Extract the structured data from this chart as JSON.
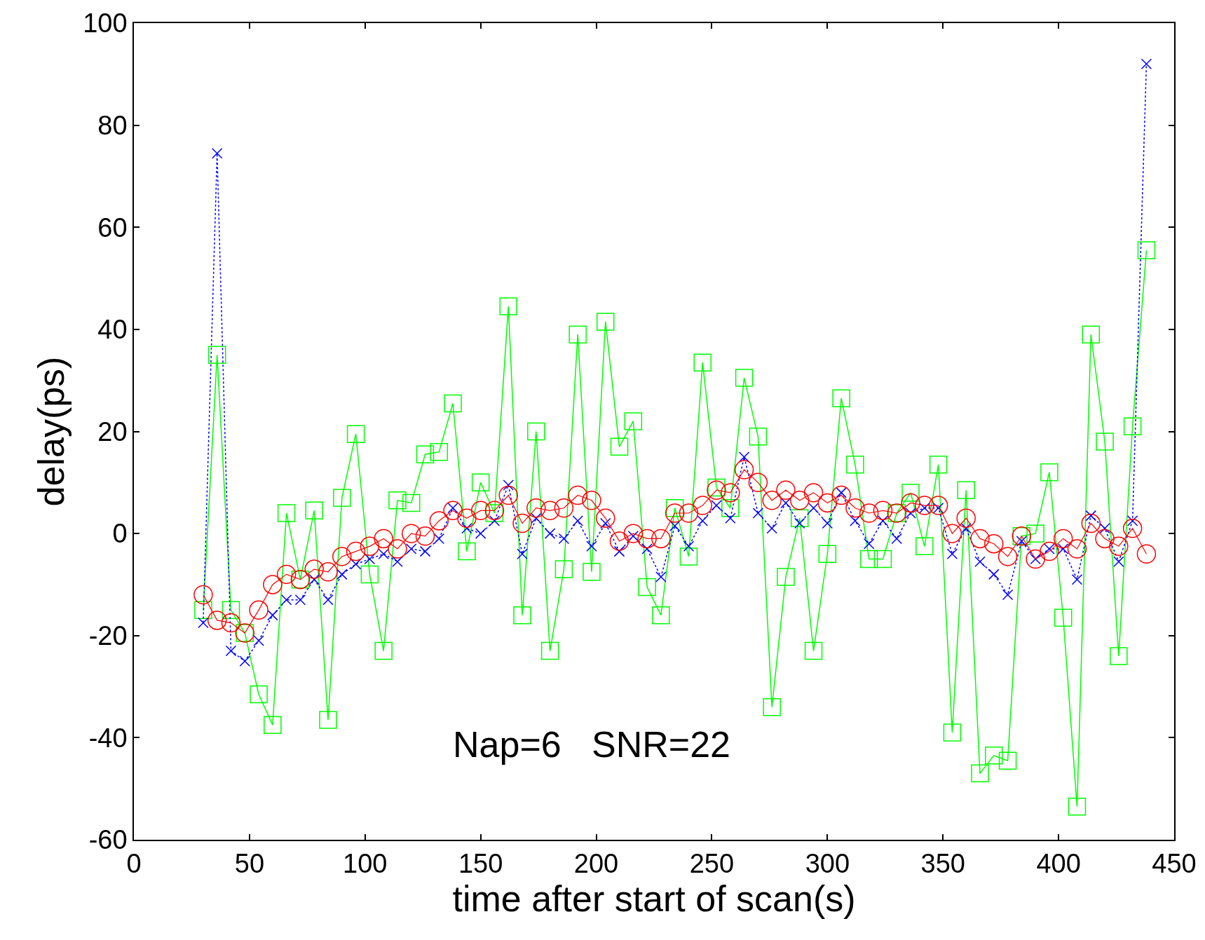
{
  "chart_data": {
    "type": "line",
    "xlabel": "time after start of scan(s)",
    "ylabel": "delay(ps)",
    "annotations": [
      "Nap=6   SNR=22"
    ],
    "x": [
      30,
      36,
      42,
      48,
      54,
      60,
      66,
      72,
      78,
      84,
      90,
      96,
      102,
      108,
      114,
      120,
      126,
      132,
      138,
      144,
      150,
      156,
      162,
      168,
      174,
      180,
      186,
      192,
      198,
      204,
      210,
      216,
      222,
      228,
      234,
      240,
      246,
      252,
      258,
      264,
      270,
      276,
      282,
      288,
      294,
      300,
      306,
      312,
      318,
      324,
      330,
      336,
      342,
      348,
      354,
      360,
      366,
      372,
      378,
      384,
      390,
      396,
      402,
      408,
      414,
      420,
      426,
      432,
      438
    ],
    "series": [
      {
        "color": "#00ff00",
        "marker": "square",
        "line_style": "solid",
        "values": [
          -15,
          35,
          -15,
          -19.5,
          -31.5,
          -37.5,
          4,
          -9,
          4.5,
          -36.5,
          7,
          19.5,
          -8,
          -23,
          6.5,
          6,
          15.5,
          16,
          25.5,
          -3.5,
          10,
          4,
          44.5,
          -16,
          20,
          -23,
          -7,
          39,
          -7.5,
          41.5,
          17,
          22,
          -10.5,
          -16,
          5,
          -4.5,
          33.5,
          9,
          5,
          30.5,
          19,
          -34,
          -8.5,
          3,
          -23,
          -4,
          26.5,
          13.5,
          -5,
          -5,
          4,
          8,
          -2.5,
          13.5,
          -39,
          8.5,
          -47,
          -43.5,
          -44.5,
          -0.5,
          0,
          12,
          -16.5,
          -53.5,
          39,
          18,
          -24,
          21,
          55.5
        ]
      },
      {
        "color": "#0000ff",
        "marker": "cross",
        "line_style": "dotted",
        "values": [
          -17.5,
          74.5,
          -23,
          -25,
          -21,
          -16,
          -13,
          -13,
          -9,
          -13,
          -8,
          -6,
          -5,
          -4,
          -5.5,
          -3,
          -3.5,
          -1,
          5,
          1,
          0,
          2.5,
          9.5,
          -4,
          3,
          0,
          -1,
          2.5,
          -2.5,
          2,
          -3.5,
          -0.5,
          -3,
          -8.5,
          1.5,
          -2.5,
          2.5,
          5.5,
          3,
          15,
          4,
          1,
          6,
          2,
          5,
          2,
          8,
          2.5,
          -2,
          2.5,
          -1,
          4,
          5,
          5,
          -4,
          1,
          -5.5,
          -8,
          -12,
          -1.5,
          -5,
          -3,
          -3,
          -9,
          3.5,
          1,
          -5.5,
          2.5,
          92
        ]
      },
      {
        "color": "#ff0000",
        "marker": "circle",
        "line_style": "solid",
        "values": [
          -12,
          -17,
          -17.5,
          -19.5,
          -15,
          -10,
          -8,
          -9,
          -7,
          -7.5,
          -4.5,
          -3.5,
          -2.5,
          -1,
          -3,
          0,
          -0.5,
          2.5,
          4.5,
          3,
          4.5,
          4.5,
          7.5,
          2,
          5,
          4.5,
          5,
          7.5,
          6.5,
          3,
          -1.5,
          0,
          -1,
          -1,
          4,
          4,
          5.5,
          8.5,
          8,
          12.5,
          10,
          6.5,
          8.5,
          6.5,
          8,
          6,
          7.5,
          5,
          4,
          4.5,
          4,
          6,
          5.5,
          5.5,
          0,
          3,
          -1,
          -2,
          -4.5,
          -0.5,
          -5,
          -3.5,
          -1,
          -3,
          2,
          -1,
          -2.5,
          1,
          -4
        ]
      }
    ],
    "xlim": [
      0,
      450
    ],
    "xticks": [
      0,
      50,
      100,
      150,
      200,
      250,
      300,
      350,
      400,
      450
    ],
    "ylim": [
      -60,
      100
    ],
    "yticks": [
      -60,
      -40,
      -20,
      0,
      20,
      40,
      60,
      80,
      100
    ]
  }
}
